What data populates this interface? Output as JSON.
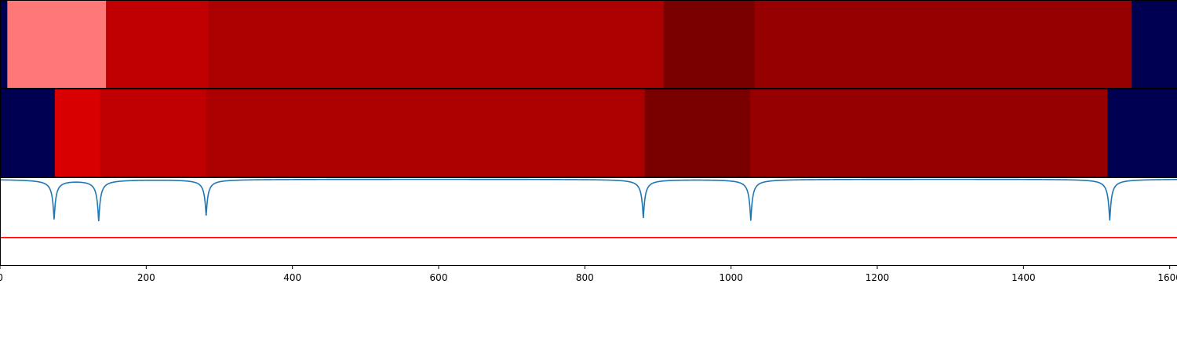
{
  "chart_data": [
    {
      "type": "heatmap",
      "panel": "top-segments",
      "xlim": [
        0,
        1610
      ],
      "segments": [
        {
          "start": 0,
          "end": 10,
          "color": "#000050"
        },
        {
          "start": 10,
          "end": 145,
          "color": "#ff7878"
        },
        {
          "start": 145,
          "end": 285,
          "color": "#c00000"
        },
        {
          "start": 285,
          "end": 908,
          "color": "#aa0000"
        },
        {
          "start": 908,
          "end": 1032,
          "color": "#7a0000"
        },
        {
          "start": 1032,
          "end": 1548,
          "color": "#960000"
        },
        {
          "start": 1548,
          "end": 1610,
          "color": "#000050"
        }
      ]
    },
    {
      "type": "heatmap",
      "panel": "middle-segments",
      "xlim": [
        0,
        1610
      ],
      "segments": [
        {
          "start": 0,
          "end": 75,
          "color": "#000050"
        },
        {
          "start": 75,
          "end": 137,
          "color": "#d80000"
        },
        {
          "start": 137,
          "end": 282,
          "color": "#c00000"
        },
        {
          "start": 282,
          "end": 882,
          "color": "#aa0000"
        },
        {
          "start": 882,
          "end": 1026,
          "color": "#7a0000"
        },
        {
          "start": 1026,
          "end": 1515,
          "color": "#960000"
        },
        {
          "start": 1515,
          "end": 1610,
          "color": "#000050"
        }
      ]
    },
    {
      "type": "line",
      "panel": "signal",
      "xlim": [
        0,
        1610
      ],
      "ylim": [
        -1.0,
        0.02
      ],
      "xticks": [
        0,
        200,
        400,
        600,
        800,
        1000,
        1200,
        1400,
        1600
      ],
      "xtick_labels": [
        "0",
        "200",
        "400",
        "600",
        "800",
        "1000",
        "1200",
        "1400",
        "1600"
      ],
      "dips": [
        {
          "x": 74,
          "depth": 0.46
        },
        {
          "x": 135,
          "depth": 0.48
        },
        {
          "x": 282,
          "depth": 0.42
        },
        {
          "x": 880,
          "depth": 0.45
        },
        {
          "x": 1027,
          "depth": 0.48
        },
        {
          "x": 1518,
          "depth": 0.48
        }
      ],
      "baseline": 0.0,
      "threshold": -0.68,
      "series": [
        {
          "role": "signal",
          "color": "#1f77b4"
        },
        {
          "role": "threshold",
          "color": "#ff0000"
        }
      ]
    }
  ]
}
